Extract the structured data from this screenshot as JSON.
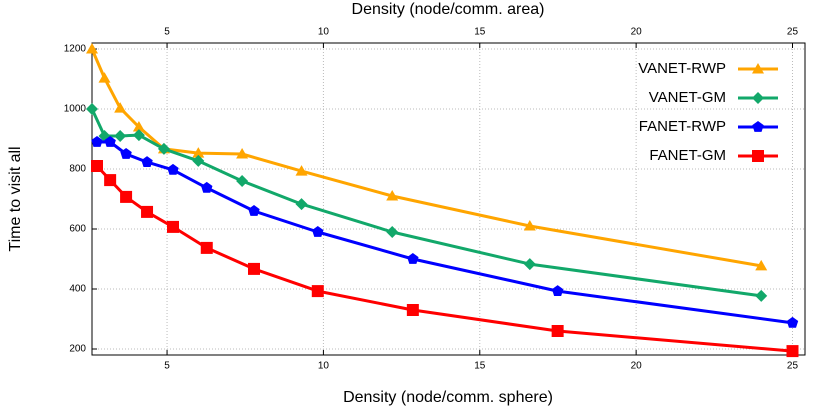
{
  "chart_data": {
    "type": "line",
    "xlabel": "Density (node/comm. sphere)",
    "x2label": "Density (node/comm. area)",
    "ylabel": "Time to visit all",
    "xlim": [
      2.6,
      25.4
    ],
    "xticks": [
      5,
      10,
      15,
      20,
      25
    ],
    "x2ticks": [
      5,
      10,
      15,
      20,
      25
    ],
    "ylim": [
      180,
      1220
    ],
    "yticks": [
      200,
      400,
      600,
      800,
      1000,
      1200
    ],
    "grid": true,
    "legend": "upper right",
    "series": [
      {
        "name": "VANET-RWP",
        "color": "#ffa500",
        "marker": "triangle",
        "x": [
          2.6,
          3.0,
          3.5,
          4.1,
          4.9,
          6.0,
          7.4,
          9.3,
          12.2,
          16.6,
          24.0
        ],
        "values": [
          1200,
          1103,
          1003,
          940,
          867,
          853,
          850,
          793,
          710,
          610,
          477
        ]
      },
      {
        "name": "VANET-GM",
        "color": "#12a86a",
        "marker": "diamond",
        "x": [
          2.6,
          3.0,
          3.5,
          4.1,
          4.9,
          6.0,
          7.4,
          9.3,
          12.2,
          16.6,
          24.0
        ],
        "values": [
          1000,
          910,
          910,
          913,
          867,
          827,
          760,
          683,
          590,
          483,
          377
        ]
      },
      {
        "name": "FANET-RWP",
        "color": "#0000ff",
        "marker": "pentagon",
        "x": [
          2.76,
          3.18,
          3.69,
          4.36,
          5.19,
          6.27,
          7.78,
          9.82,
          12.86,
          17.49,
          25.0
        ],
        "values": [
          890,
          890,
          850,
          823,
          797,
          737,
          660,
          590,
          500,
          393,
          287
        ]
      },
      {
        "name": "FANET-GM",
        "color": "#ff0000",
        "marker": "square",
        "x": [
          2.76,
          3.18,
          3.69,
          4.36,
          5.19,
          6.27,
          7.78,
          9.82,
          12.86,
          17.49,
          25.0
        ],
        "values": [
          810,
          763,
          707,
          657,
          607,
          537,
          467,
          393,
          330,
          260,
          193
        ]
      }
    ]
  }
}
